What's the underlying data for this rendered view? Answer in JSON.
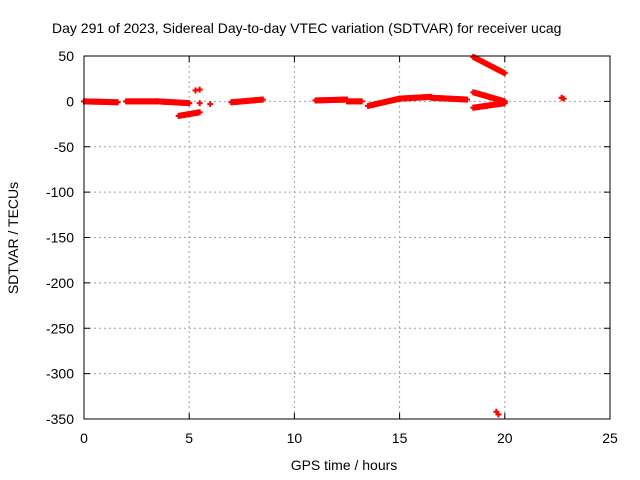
{
  "chart_data": {
    "type": "scatter",
    "title": "Day 291 of 2023, Sidereal Day-to-day VTEC variation (SDTVAR) for receiver ucag",
    "xlabel": "GPS time / hours",
    "ylabel": "SDTVAR / TECUs",
    "xlim": [
      0,
      25
    ],
    "ylim": [
      -350,
      50
    ],
    "xticks": [
      0,
      5,
      10,
      15,
      20,
      25
    ],
    "yticks": [
      50,
      0,
      -50,
      -100,
      -150,
      -200,
      -250,
      -300,
      -350
    ],
    "grid": true,
    "marker_color": "#ff0000",
    "segments": [
      {
        "x0": 0.0,
        "x1": 1.6,
        "y0": 0,
        "y1": -1
      },
      {
        "x0": 2.0,
        "x1": 3.5,
        "y0": 0,
        "y1": 0
      },
      {
        "x0": 3.5,
        "x1": 5.0,
        "y0": 0,
        "y1": -2
      },
      {
        "x0": 4.5,
        "x1": 5.5,
        "y0": -16,
        "y1": -12
      },
      {
        "x0": 7.0,
        "x1": 8.5,
        "y0": -1,
        "y1": 2
      },
      {
        "x0": 11.0,
        "x1": 12.5,
        "y0": 1,
        "y1": 2
      },
      {
        "x0": 12.5,
        "x1": 13.2,
        "y0": 0,
        "y1": 0
      },
      {
        "x0": 13.5,
        "x1": 15.0,
        "y0": -5,
        "y1": 3
      },
      {
        "x0": 15.0,
        "x1": 16.5,
        "y0": 3,
        "y1": 5
      },
      {
        "x0": 16.5,
        "x1": 18.2,
        "y0": 4,
        "y1": 2
      },
      {
        "x0": 18.5,
        "x1": 20.0,
        "y0": 49,
        "y1": 31
      },
      {
        "x0": 18.5,
        "x1": 20.0,
        "y0": 10,
        "y1": 0
      },
      {
        "x0": 18.5,
        "x1": 20.0,
        "y0": -7,
        "y1": -2
      }
    ],
    "points": [
      {
        "x": 5.3,
        "y": 12
      },
      {
        "x": 5.5,
        "y": 13
      },
      {
        "x": 5.5,
        "y": -2
      },
      {
        "x": 6.0,
        "y": -3
      },
      {
        "x": 22.7,
        "y": 4
      },
      {
        "x": 22.8,
        "y": 3
      },
      {
        "x": 19.6,
        "y": -342
      },
      {
        "x": 19.7,
        "y": -345
      }
    ]
  }
}
